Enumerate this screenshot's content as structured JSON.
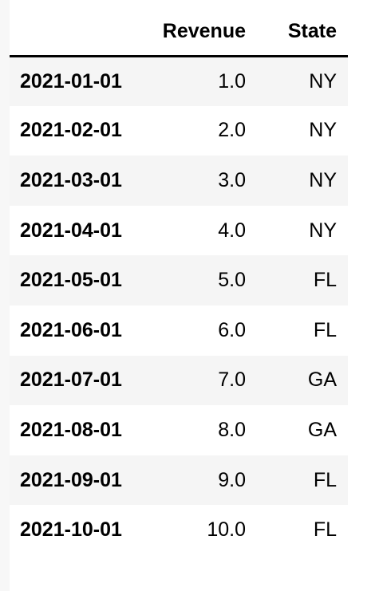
{
  "table": {
    "index_header": "",
    "columns": [
      "Revenue",
      "State"
    ],
    "rows": [
      {
        "index": "2021-01-01",
        "revenue": "1.0",
        "state": "NY"
      },
      {
        "index": "2021-02-01",
        "revenue": "2.0",
        "state": "NY"
      },
      {
        "index": "2021-03-01",
        "revenue": "3.0",
        "state": "NY"
      },
      {
        "index": "2021-04-01",
        "revenue": "4.0",
        "state": "NY"
      },
      {
        "index": "2021-05-01",
        "revenue": "5.0",
        "state": "FL"
      },
      {
        "index": "2021-06-01",
        "revenue": "6.0",
        "state": "FL"
      },
      {
        "index": "2021-07-01",
        "revenue": "7.0",
        "state": "GA"
      },
      {
        "index": "2021-08-01",
        "revenue": "8.0",
        "state": "GA"
      },
      {
        "index": "2021-09-01",
        "revenue": "9.0",
        "state": "FL"
      },
      {
        "index": "2021-10-01",
        "revenue": "10.0",
        "state": "FL"
      }
    ]
  }
}
